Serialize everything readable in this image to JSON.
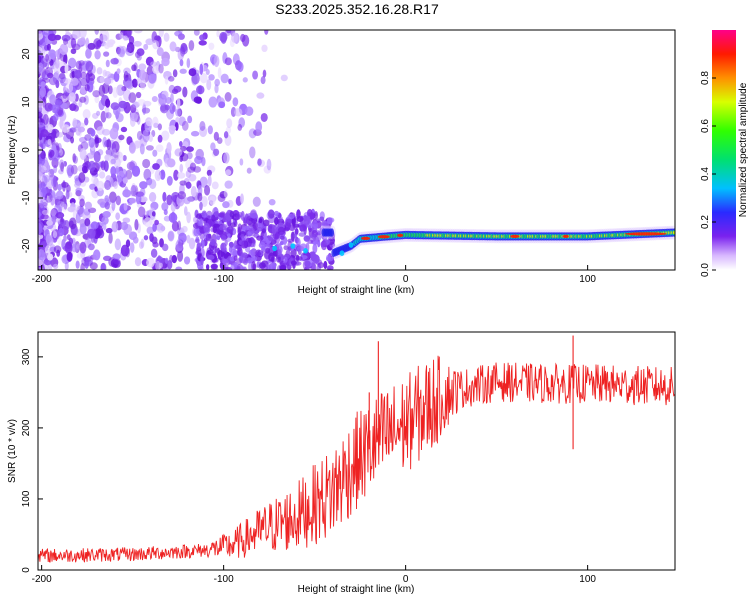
{
  "chart_data": [
    {
      "type": "heatmap",
      "title": "S233.2025.352.16.28.R17",
      "xlabel": "Height of straight line (km)",
      "ylabel": "Frequency (Hz)",
      "xlim": [
        -202,
        148
      ],
      "ylim": [
        -25,
        25
      ],
      "x_ticks": [
        -200,
        -100,
        0,
        100
      ],
      "x_tick_labels": [
        "-200",
        "-100",
        "0",
        "100"
      ],
      "y_ticks": [
        20,
        10,
        0,
        -10,
        -20
      ],
      "y_tick_labels": [
        "20",
        "10",
        "0",
        "-10",
        "-20"
      ],
      "colorbar": {
        "label": "Normalized spectral amplitude",
        "range": [
          0,
          1
        ],
        "ticks": [
          0.0,
          0.2,
          0.4,
          0.6,
          0.8
        ],
        "tick_labels": [
          "0.0",
          "0.2",
          "0.4",
          "0.6",
          "0.8"
        ]
      },
      "features": {
        "noise_region_x": [
          -202,
          -80
        ],
        "signal_start_x": -40,
        "signal_band": [
          {
            "x": -40,
            "freq": -21.5
          },
          {
            "x": -30,
            "freq": -20
          },
          {
            "x": -25,
            "freq": -18.5
          },
          {
            "x": -10,
            "freq": -18
          },
          {
            "x": 0,
            "freq": -17.7
          },
          {
            "x": 50,
            "freq": -18
          },
          {
            "x": 100,
            "freq": -18
          },
          {
            "x": 148,
            "freq": -17.2
          }
        ]
      }
    },
    {
      "type": "line",
      "xlabel": "Height of straight line (km)",
      "ylabel": "SNR (10 * v/v)",
      "xlim": [
        -202,
        148
      ],
      "ylim": [
        0,
        335
      ],
      "x_ticks": [
        -200,
        -100,
        0,
        100
      ],
      "x_tick_labels": [
        "-200",
        "-100",
        "0",
        "100"
      ],
      "y_ticks": [
        0,
        100,
        200,
        300
      ],
      "y_tick_labels": [
        "0",
        "100",
        "200",
        "300"
      ],
      "color": "#ee2222",
      "series": [
        {
          "name": "SNR",
          "x": [
            -202,
            -150,
            -110,
            -95,
            -80,
            -60,
            -40,
            -30,
            -20,
            -10,
            0,
            10,
            20,
            30,
            50,
            80,
            100,
            148
          ],
          "y": [
            20,
            22,
            28,
            35,
            55,
            75,
            110,
            145,
            170,
            190,
            205,
            225,
            245,
            255,
            265,
            262,
            262,
            258
          ]
        }
      ],
      "spikes": [
        {
          "x": -15,
          "y": 322
        },
        {
          "x": -20,
          "y": 250
        },
        {
          "x": 92,
          "y": 330
        },
        {
          "x": 92,
          "y": 170
        }
      ]
    }
  ]
}
